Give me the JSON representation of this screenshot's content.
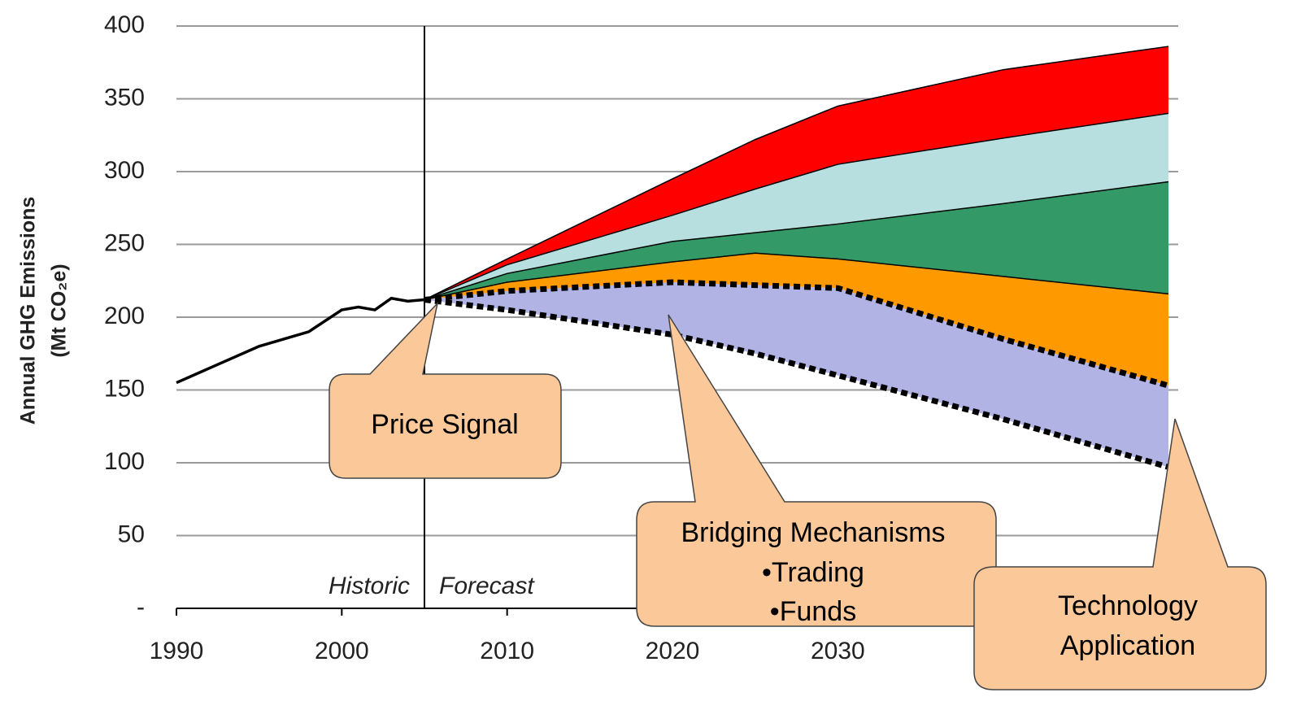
{
  "chart_data": {
    "type": "area",
    "y_label": [
      "Annual GHG Emissions",
      "(Mt CO₂e)"
    ],
    "xlim": [
      1990,
      2050
    ],
    "xticks": [
      1990,
      2000,
      2010,
      2020,
      2030
    ],
    "ylim": [
      0,
      400
    ],
    "yticks": [
      {
        "value": 0,
        "label": "-"
      },
      50,
      100,
      150,
      200,
      250,
      300,
      350,
      400
    ],
    "grid": true,
    "divider": {
      "x": 2005,
      "labels": [
        "Historic",
        "Forecast"
      ]
    },
    "history": {
      "color": "#000000",
      "x": [
        1990,
        1995,
        1998,
        2000,
        2001,
        2002,
        2003,
        2004,
        2005
      ],
      "values": [
        155,
        180,
        190,
        205,
        207,
        205,
        213,
        211,
        212
      ]
    },
    "x": [
      2005,
      2010,
      2020,
      2025,
      2030,
      2040,
      2050
    ],
    "series": [
      {
        "color": "#ff0000",
        "values": [
          212,
          240,
          295,
          322,
          345,
          370,
          386
        ]
      },
      {
        "color": "#b8dfe0",
        "values": [
          212,
          236,
          270,
          288,
          305,
          323,
          340
        ]
      },
      {
        "color": "#339966",
        "values": [
          212,
          230,
          252,
          258,
          264,
          278,
          293
        ]
      },
      {
        "color": "#ff9900",
        "values": [
          212,
          224,
          238,
          244,
          240,
          228,
          216
        ]
      },
      {
        "color": "#b0b3e3",
        "style": "dotted",
        "values": [
          212,
          218,
          224,
          222,
          220,
          185,
          153
        ]
      },
      {
        "style": "dotted",
        "values": [
          212,
          205,
          188,
          175,
          160,
          130,
          97
        ]
      }
    ],
    "annotations": [
      {
        "lines": [
          "Price Signal"
        ]
      },
      {
        "lines": [
          "Bridging Mechanisms",
          "•Trading",
          "•Funds"
        ]
      },
      {
        "lines": [
          "Technology",
          "Application"
        ]
      }
    ]
  }
}
